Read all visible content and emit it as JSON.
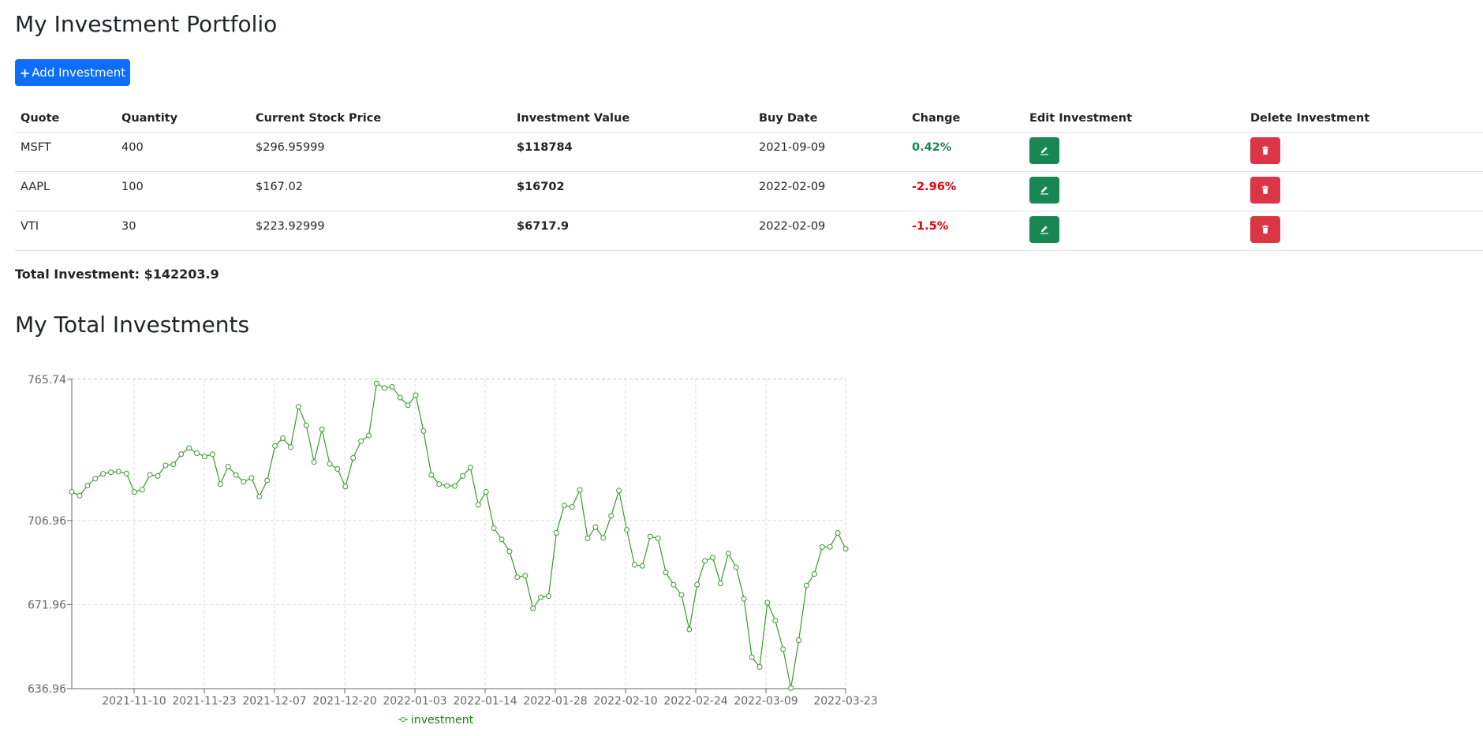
{
  "page": {
    "title": "My Investment Portfolio",
    "add_button_label": "Add Investment",
    "total_label": "Total Investment: $142203.9",
    "chart_title": "My Total Investments"
  },
  "table": {
    "headers": [
      "Quote",
      "Quantity",
      "Current Stock Price",
      "Investment Value",
      "Buy Date",
      "Change",
      "Edit Investment",
      "Delete Investment"
    ],
    "rows": [
      {
        "quote": "MSFT",
        "quantity": "400",
        "price": "$296.95999",
        "value": "$118784",
        "buy_date": "2021-09-09",
        "change": "0.42%",
        "change_status": "positive"
      },
      {
        "quote": "AAPL",
        "quantity": "100",
        "price": "$167.02",
        "value": "$16702",
        "buy_date": "2022-02-09",
        "change": "-2.96%",
        "change_status": "negative"
      },
      {
        "quote": "VTI",
        "quantity": "30",
        "price": "$223.92999",
        "value": "$6717.9",
        "buy_date": "2022-02-09",
        "change": "-1.5%",
        "change_status": "negative"
      }
    ]
  },
  "icons": {
    "add": "plus-icon",
    "edit": "pencil-icon",
    "delete": "trash-icon"
  },
  "colors": {
    "primary": "#0d6efd",
    "success": "#198754",
    "danger": "#dc3545",
    "negative_text": "#e3000f",
    "line": "#3a9a2e"
  },
  "chart_data": {
    "type": "line",
    "title": "",
    "xlabel": "",
    "ylabel": "",
    "x_ticks": [
      "2021-11-10",
      "2021-11-23",
      "2021-12-07",
      "2021-12-20",
      "2022-01-03",
      "2022-01-14",
      "2022-01-28",
      "2022-02-10",
      "2022-02-24",
      "2022-03-09",
      "2022-03-23"
    ],
    "y_ticks": [
      "765.74",
      "706.96",
      "671.96",
      "636.96"
    ],
    "ylim": [
      636.96,
      766
    ],
    "grid": true,
    "legend": "bottom-center",
    "series": [
      {
        "name": "investment",
        "values": [
          718.9,
          717.3,
          721.5,
          724.4,
          726.4,
          727,
          727.3,
          726.5,
          718.8,
          719.8,
          726,
          725.5,
          729.9,
          730.3,
          734.6,
          737.1,
          735,
          733.6,
          734.5,
          722.1,
          729.4,
          725.9,
          723.1,
          724.7,
          716.9,
          723.6,
          738,
          741.2,
          737.5,
          754.3,
          746.6,
          731.3,
          744.9,
          730.5,
          728.4,
          721.1,
          733,
          740,
          742.3,
          764,
          762.1,
          762.6,
          758.1,
          754.9,
          759.1,
          744.2,
          725.9,
          722.1,
          721.4,
          721.3,
          725.5,
          729,
          713.5,
          718.9,
          703.8,
          699.1,
          694.1,
          683.4,
          684,
          670.4,
          675,
          675.5,
          701.8,
          713.2,
          712.6,
          719.7,
          699.5,
          704.2,
          699.7,
          708.9,
          719.4,
          703.1,
          688.5,
          688.1,
          700.3,
          699.5,
          685.3,
          680.2,
          676,
          661.6,
          680.3,
          690.1,
          691.5,
          680.8,
          693.3,
          687.5,
          674.3,
          650.1,
          646,
          672.8,
          665.3,
          653.4,
          637.2,
          657.1,
          679.9,
          684.7,
          695.9,
          696,
          701.8,
          695.2
        ]
      }
    ]
  }
}
